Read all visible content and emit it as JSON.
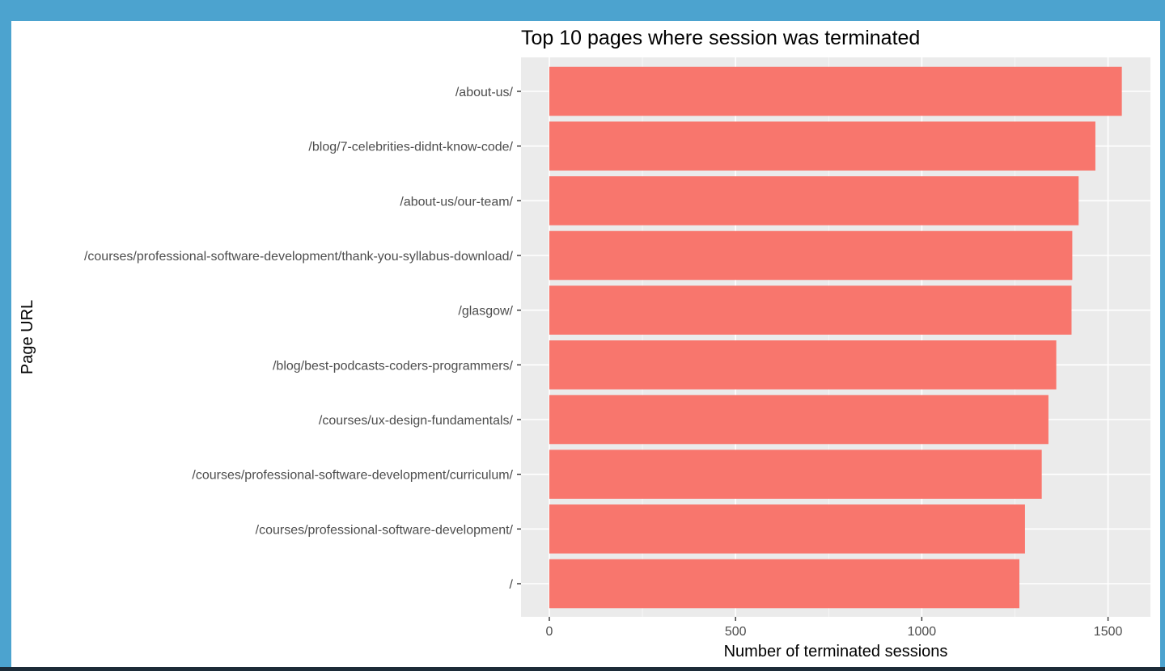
{
  "colors": {
    "frame": "#4ca3cf",
    "panel_background": "#ebebeb",
    "grid_major": "#ffffff",
    "bar_fill": "#f8766d",
    "tick_text": "#4d4d4d",
    "title_text": "#000000"
  },
  "chart_data": {
    "type": "bar",
    "orientation": "horizontal",
    "title": "Top 10 pages where session was terminated",
    "xlabel": "Number of terminated sessions",
    "ylabel": "Page URL",
    "xlim": [
      0,
      1620
    ],
    "x_ticks": [
      0,
      500,
      1000,
      1500
    ],
    "x_tick_labels": [
      "0",
      "500",
      "1000",
      "1500"
    ],
    "grid": true,
    "legend": "none",
    "categories": [
      "/about-us/",
      "/blog/7-celebrities-didnt-know-code/",
      "/about-us/our-team/",
      "/courses/professional-software-development/thank-you-syllabus-download/",
      "/glasgow/",
      "/blog/best-podcasts-coders-programmers/",
      "/courses/ux-design-fundamentals/",
      "/courses/professional-software-development/curriculum/",
      "/courses/professional-software-development/",
      "/"
    ],
    "values": [
      1537,
      1466,
      1421,
      1404,
      1402,
      1361,
      1340,
      1322,
      1277,
      1262
    ]
  }
}
